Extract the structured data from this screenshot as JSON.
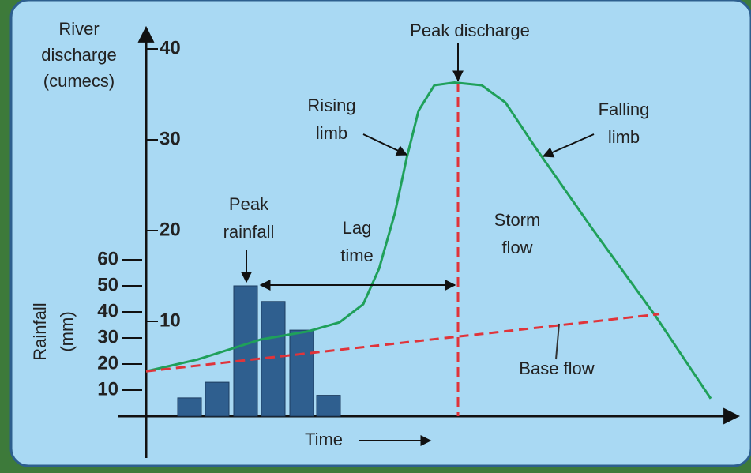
{
  "chart_data": {
    "type": "hydrograph",
    "y_label": [
      "River",
      "discharge",
      "(cumecs)"
    ],
    "y2_label": [
      "Rainfall",
      "(mm)"
    ],
    "x_label": "Time",
    "xlim": [
      0,
      74.5
    ],
    "ylim": [
      0,
      40
    ],
    "yticks": [
      10,
      20,
      30,
      40
    ],
    "y2lim": [
      0,
      60
    ],
    "y2ticks": [
      10,
      20,
      30,
      40,
      50,
      60
    ],
    "series": [
      {
        "color": "#1fa05a",
        "x": [
          0,
          6.5,
          14.5,
          20.5,
          24.5,
          27.5,
          29.5,
          31.5,
          33,
          34.5,
          36.5,
          39,
          42.5,
          45.5,
          49.5,
          56.5,
          64.5,
          68.5,
          71.5
        ],
        "values": [
          4.5,
          5.8,
          8.0,
          8.9,
          9.9,
          11.9,
          15.8,
          21.9,
          28,
          33.2,
          36,
          36.3,
          36,
          34.1,
          28.9,
          20.2,
          10.6,
          5.4,
          1.5
        ]
      },
      {
        "color": "#e0343a",
        "x": [
          0,
          65
        ],
        "values": [
          4.5,
          10.8
        ]
      }
    ],
    "rainfall": {
      "color": "#2f5f8f",
      "x": [
        5.5,
        9,
        12.6,
        16.1,
        19.7,
        23.1
      ],
      "width": 3,
      "values": [
        7,
        13,
        50,
        44,
        33,
        8
      ],
      "axis": "y2"
    },
    "peak_x": 39.5,
    "annotations": [
      [
        "Peak discharge"
      ],
      [
        "Rising",
        "limb"
      ],
      [
        "Falling",
        "limb"
      ],
      [
        "Peak",
        "rainfall"
      ],
      [
        "Lag",
        "time"
      ],
      [
        "Storm",
        "flow"
      ],
      [
        "Base flow"
      ]
    ]
  }
}
